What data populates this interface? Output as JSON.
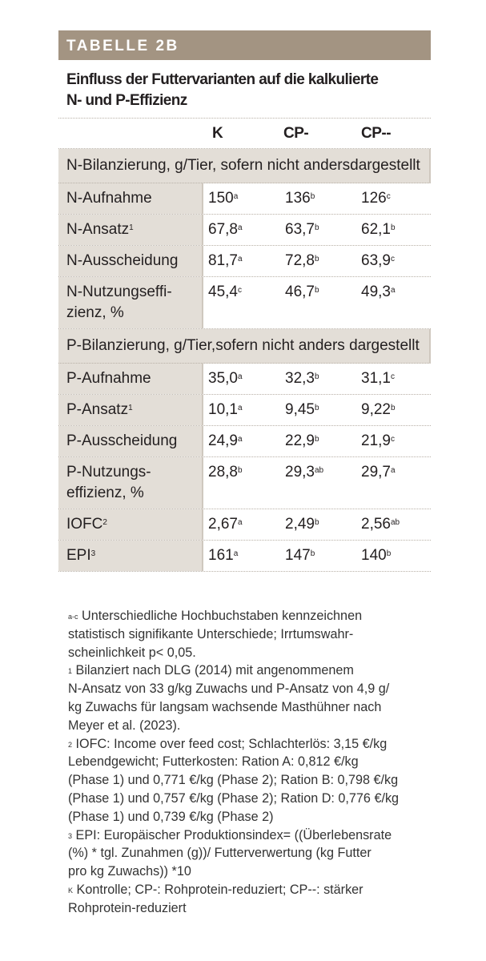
{
  "header": {
    "label": "TABELLE 2B"
  },
  "title": {
    "line1": "Einfluss der Futtervarianten auf die kalkulierte",
    "line2": "N- und P-Effizienz"
  },
  "columns": [
    "K",
    "CP-",
    "CP--"
  ],
  "sections": [
    {
      "title_lines": [
        "N-Bilanzierung, g/Tier, sofern nicht anders",
        "dargestellt"
      ],
      "rows": [
        {
          "label_lines": [
            "N-Aufnahme"
          ],
          "sup": "",
          "cells": [
            {
              "v": "150",
              "s": "a"
            },
            {
              "v": "136",
              "s": "b"
            },
            {
              "v": "126",
              "s": "c"
            }
          ]
        },
        {
          "label_lines": [
            "N-Ansatz"
          ],
          "sup": "1",
          "cells": [
            {
              "v": "67,8",
              "s": "a"
            },
            {
              "v": "63,7",
              "s": "b"
            },
            {
              "v": "62,1",
              "s": "b"
            }
          ]
        },
        {
          "label_lines": [
            "N-Ausscheidung"
          ],
          "sup": "",
          "cells": [
            {
              "v": "81,7",
              "s": "a"
            },
            {
              "v": "72,8",
              "s": "b"
            },
            {
              "v": "63,9",
              "s": "c"
            }
          ]
        },
        {
          "label_lines": [
            "N-Nutzungseffi-",
            "zienz, %"
          ],
          "sup": "",
          "cells": [
            {
              "v": "45,4",
              "s": "c"
            },
            {
              "v": "46,7",
              "s": "b"
            },
            {
              "v": "49,3",
              "s": "a"
            }
          ]
        }
      ]
    },
    {
      "title_lines": [
        "P-Bilanzierung, g/Tier,",
        "sofern nicht anders dargestellt"
      ],
      "rows": [
        {
          "label_lines": [
            "P-Aufnahme"
          ],
          "sup": "",
          "cells": [
            {
              "v": "35,0",
              "s": "a"
            },
            {
              "v": "32,3",
              "s": "b"
            },
            {
              "v": "31,1",
              "s": "c"
            }
          ]
        },
        {
          "label_lines": [
            "P-Ansatz"
          ],
          "sup": "1",
          "cells": [
            {
              "v": "10,1",
              "s": "a"
            },
            {
              "v": "9,45",
              "s": "b"
            },
            {
              "v": "9,22",
              "s": "b"
            }
          ]
        },
        {
          "label_lines": [
            "P-Ausscheidung"
          ],
          "sup": "",
          "cells": [
            {
              "v": "24,9",
              "s": "a"
            },
            {
              "v": "22,9",
              "s": "b"
            },
            {
              "v": "21,9",
              "s": "c"
            }
          ]
        },
        {
          "label_lines": [
            "P-Nutzungs-",
            "effizienz, %"
          ],
          "sup": "",
          "cells": [
            {
              "v": "28,8",
              "s": "b"
            },
            {
              "v": "29,3",
              "s": "ab"
            },
            {
              "v": "29,7",
              "s": "a"
            }
          ]
        },
        {
          "label_lines": [
            "IOFC"
          ],
          "sup": "2",
          "cells": [
            {
              "v": "2,67",
              "s": "a"
            },
            {
              "v": "2,49",
              "s": "b"
            },
            {
              "v": "2,56",
              "s": "ab"
            }
          ]
        },
        {
          "label_lines": [
            "EPI"
          ],
          "sup": "3",
          "cells": [
            {
              "v": "161",
              "s": "a"
            },
            {
              "v": "147",
              "s": "b"
            },
            {
              "v": "140",
              "s": "b"
            }
          ]
        }
      ]
    }
  ],
  "footnotes": [
    {
      "mark": "a-c",
      "lines": [
        "Unterschiedliche Hochbuchstaben kennzeichnen",
        "statistisch signifikante Unterschiede; Irrtumswahr-",
        "scheinlichkeit p< 0,05."
      ]
    },
    {
      "mark": "1",
      "lines": [
        "Bilanziert nach DLG (2014) mit angenommenem",
        "N-Ansatz von 33 g/kg Zuwachs und P-Ansatz von 4,9 g/",
        "kg Zuwachs für langsam wachsende Masthühner nach",
        "Meyer et al. (2023)."
      ]
    },
    {
      "mark": "2",
      "lines": [
        "IOFC: Income over feed cost; Schlachterlös: 3,15 €/kg",
        "Lebendgewicht; Futterkosten: Ration A: 0,812 €/kg",
        "(Phase 1) und 0,771 €/kg (Phase 2); Ration B: 0,798 €/kg",
        "(Phase 1) und 0,757 €/kg (Phase 2); Ration D: 0,776 €/kg",
        "(Phase 1) und 0,739 €/kg (Phase 2)"
      ]
    },
    {
      "mark": "3",
      "lines": [
        "EPI: Europäischer Produktionsindex= ((Überlebensrate",
        "(%) * tgl. Zunahmen (g))/ Futterverwertung (kg Futter",
        "pro kg Zuwachs)) *10"
      ]
    },
    {
      "mark": "K",
      "lines": [
        "Kontrolle; CP-: Rohprotein-reduziert; CP--: stärker",
        "Rohprotein-reduziert"
      ]
    }
  ]
}
